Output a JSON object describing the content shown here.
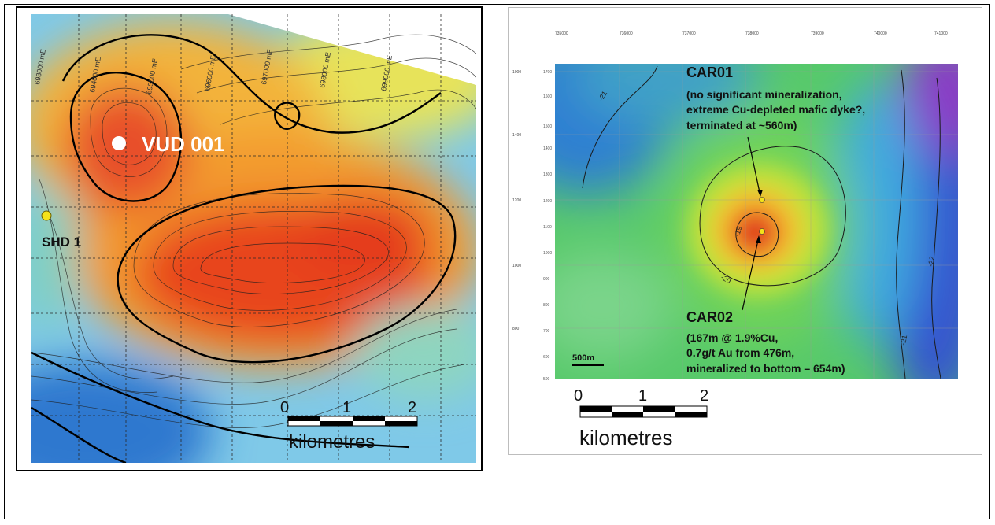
{
  "left_map": {
    "drillhole_label": "VUD 001",
    "second_hole_label": "SHD 1",
    "easting_labels": [
      "693000 mE",
      "694000 mE",
      "695000 mE",
      "696000 mE",
      "697000 mE",
      "698000 mE",
      "699000 mE"
    ],
    "scale_ticks": [
      "0",
      "1",
      "2"
    ],
    "scale_unit": "kilometres"
  },
  "right_map": {
    "top_ticks": [
      "735000",
      "736000",
      "737000",
      "738000",
      "739000",
      "740000",
      "741000"
    ],
    "left_ticks": [
      "1700",
      "1600",
      "1500",
      "1400",
      "1300",
      "1200",
      "1100",
      "1000",
      "900",
      "800",
      "700",
      "600",
      "500"
    ],
    "left_outer_ticks": [
      "1000",
      "1400",
      "1200",
      "1000",
      "800"
    ],
    "contour_labels": [
      "-21",
      "-20",
      "-19",
      "-22",
      "-21"
    ],
    "car01_title": "CAR01",
    "car01_lines": [
      "(no significant mineralization,",
      "extreme Cu-depleted mafic dyke?,",
      "terminated at ~560m)"
    ],
    "car02_title": "CAR02",
    "car02_lines": [
      "(167m @ 1.9%Cu,",
      "0.7g/t Au from 476m,",
      "mineralized to bottom – 654m)"
    ],
    "inset_scale_label": "500m",
    "scale_ticks": [
      "0",
      "1",
      "2"
    ],
    "scale_unit": "kilometres"
  },
  "colors": {
    "anomaly_high": "#e8401e",
    "anomaly_mid": "#f7c62a",
    "background_low": "#3f8fd8",
    "hole_marker_yellow": "#f4e21a"
  }
}
